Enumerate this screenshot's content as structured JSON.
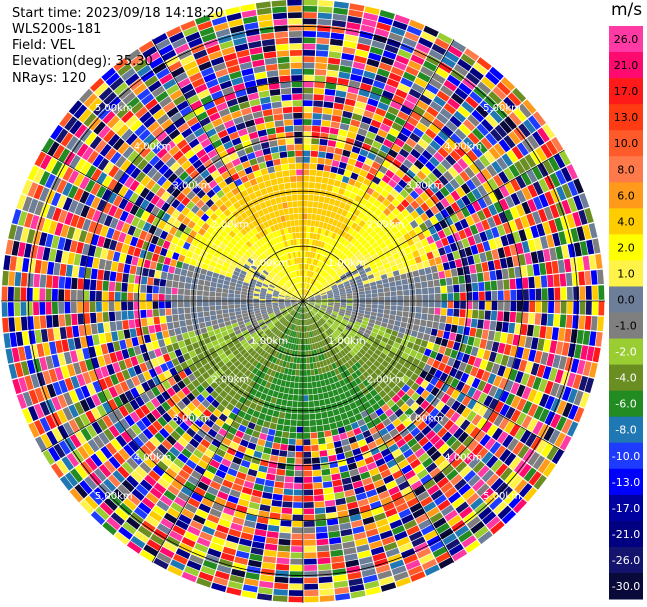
{
  "header": {
    "start_time": "Start time: 2023/09/18 14:18:20",
    "site": "WLS200s-181",
    "field": "Field: VEL",
    "elevation": "Elevation(deg): 35.30",
    "nrays": "NRays: 120"
  },
  "colorbar": {
    "unit": "m/s",
    "ticks": [
      "26.0",
      "21.0",
      "17.0",
      "13.0",
      "10.0",
      "8.0",
      "6.0",
      "4.0",
      "2.0",
      "1.0",
      "0.0",
      "-1.0",
      "-2.0",
      "-4.0",
      "-6.0",
      "-8.0",
      "-10.0",
      "-13.0",
      "-17.0",
      "-21.0",
      "-26.0",
      "-30.0"
    ],
    "colors": [
      "#ff3aa4",
      "#ff0a6e",
      "#ff1a1a",
      "#ff3b14",
      "#ff5a2a",
      "#ff7a4a",
      "#ff9a1a",
      "#ffcc00",
      "#ffff00",
      "#fff34a",
      "#6c7e98",
      "#7f7f7f",
      "#9acd32",
      "#6b8e23",
      "#228b22",
      "#1f77b4",
      "#1e3cff",
      "#0000ff",
      "#0000a0",
      "#000080",
      "#14146e",
      "#0a0a3a"
    ]
  },
  "chart_data": {
    "type": "heatmap",
    "title": "",
    "field": "VEL",
    "units": "m/s",
    "nrays": 120,
    "elevation_deg": 35.3,
    "range_rings_km": [
      1.0,
      2.0,
      3.0,
      4.0,
      5.0
    ],
    "ring_labels": [
      "1.00km",
      "2.00km",
      "3.00km",
      "4.00km",
      "5.00km"
    ],
    "max_range_km": 5.5,
    "valid_range_km": 2.5,
    "pattern": {
      "near_field": "northern sector positive (yellow 1 to 4 m/s), southern sector negative (green -1 to -6 m/s), grey near zero along east-west boundary",
      "far_field": "noise, random multicolour gates beyond about 2.5 km"
    }
  }
}
